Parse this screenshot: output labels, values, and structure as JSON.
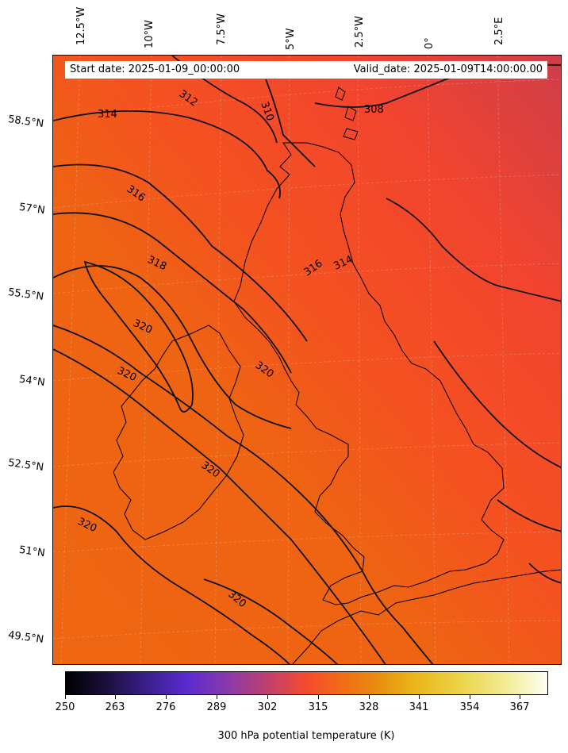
{
  "header": {
    "start_date": "Start date: 2025-01-09_00:00:00",
    "valid_date": "Valid_date: 2025-01-09T14:00:00.00"
  },
  "axes": {
    "lon_labels": [
      "12.5°W",
      "10°W",
      "7.5°W",
      "5°W",
      "2.5°W",
      "0°",
      "2.5°E"
    ],
    "lat_labels": [
      "58.5°N",
      "57°N",
      "55.5°N",
      "54°N",
      "52.5°N",
      "51°N",
      "49.5°N"
    ]
  },
  "contour_labels": [
    "314",
    "312",
    "310",
    "308",
    "316",
    "318",
    "316",
    "314",
    "320",
    "320",
    "320",
    "320",
    "320",
    "320"
  ],
  "colorbar": {
    "ticks": [
      "250",
      "263",
      "276",
      "289",
      "302",
      "315",
      "328",
      "341",
      "354",
      "367"
    ],
    "title": "300 hPa potential temperature (K)",
    "colors": [
      "#000000",
      "#3a1f8c",
      "#5a2bd0",
      "#c0406c",
      "#f54b2e",
      "#e88a10",
      "#e9b418",
      "#fffff2"
    ]
  },
  "field_colors": {
    "north_east": "#d9403f",
    "mid": "#f64a22",
    "south_west": "#ee6410"
  }
}
